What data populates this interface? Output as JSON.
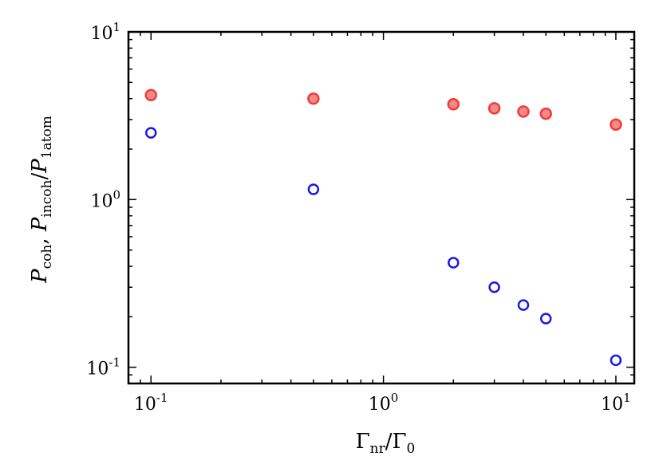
{
  "chart_data": {
    "type": "scatter",
    "xscale": "log",
    "yscale": "log",
    "xlim": [
      0.08,
      12
    ],
    "ylim": [
      0.08,
      10
    ],
    "xlabel": {
      "main": "Γ",
      "sub1": "nr",
      "slash": "/Γ",
      "sub2": "0"
    },
    "ylabel": {
      "p1": "P",
      "s1": "coh",
      "sep": ", ",
      "p2": "P",
      "s2": "incoh",
      "slash": "/",
      "p3": "P",
      "s3": "1atom"
    },
    "xticks": [
      {
        "value": 0.1,
        "base": "10",
        "exp": "-1"
      },
      {
        "value": 1,
        "base": "10",
        "exp": "0"
      },
      {
        "value": 10,
        "base": "10",
        "exp": "1"
      }
    ],
    "yticks": [
      {
        "value": 0.1,
        "base": "10",
        "exp": "-1"
      },
      {
        "value": 1,
        "base": "10",
        "exp": "0"
      },
      {
        "value": 10,
        "base": "10",
        "exp": "1"
      }
    ],
    "grid": false,
    "series": [
      {
        "marker": "filled-circle",
        "color": "#f03c3c",
        "fill": "#f28a8a",
        "x": [
          0.1,
          0.5,
          2,
          3,
          4,
          5,
          10
        ],
        "y": [
          4.2,
          4.0,
          3.7,
          3.5,
          3.35,
          3.25,
          2.8
        ]
      },
      {
        "marker": "open-circle",
        "color": "#1a1ae6",
        "x": [
          0.1,
          0.5,
          2,
          3,
          4,
          5,
          10
        ],
        "y": [
          2.5,
          1.15,
          0.42,
          0.3,
          0.235,
          0.195,
          0.11
        ]
      }
    ]
  }
}
